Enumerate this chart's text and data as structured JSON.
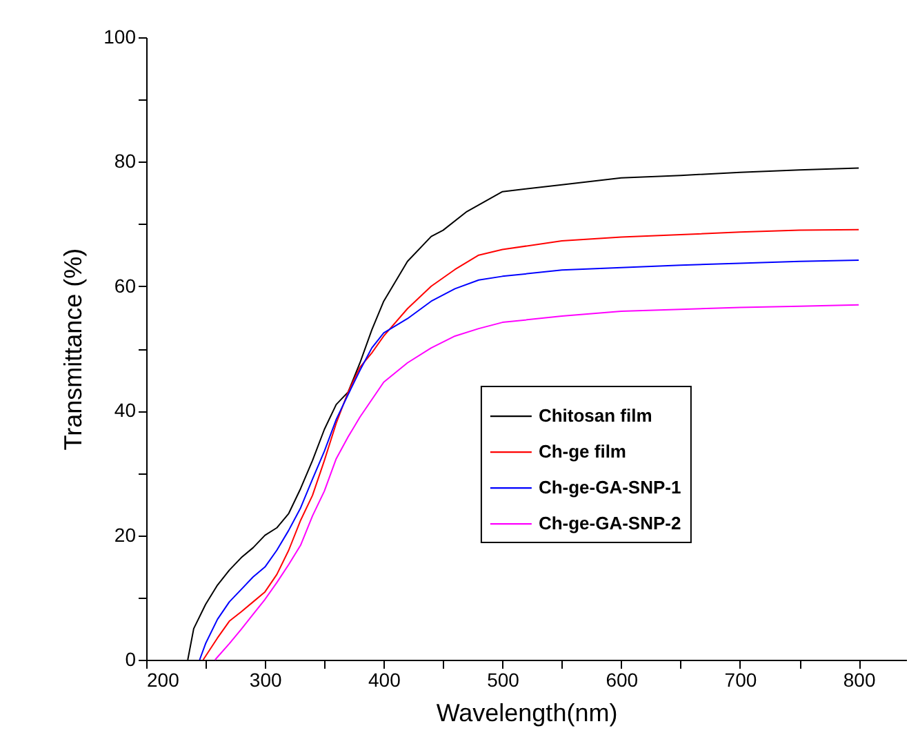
{
  "chart_data": {
    "type": "line",
    "xlabel": "Wavelength(nm)",
    "ylabel": "Transmittance (%)",
    "xlim": [
      200,
      840
    ],
    "ylim": [
      0,
      100
    ],
    "xticks": [
      200,
      {
        "value": 250,
        "label": null
      },
      300,
      {
        "value": 350,
        "label": null
      },
      400,
      {
        "value": 450,
        "label": null
      },
      500,
      {
        "value": 550,
        "label": null
      },
      600,
      {
        "value": 650,
        "label": null
      },
      700,
      {
        "value": 750,
        "label": null
      },
      800
    ],
    "yticks": [
      0,
      {
        "value": 10,
        "label": null
      },
      20,
      {
        "value": 30,
        "label": null
      },
      40,
      {
        "value": 50,
        "label": null
      },
      60,
      {
        "value": 70,
        "label": null
      },
      80,
      {
        "value": 90,
        "label": null
      },
      100
    ],
    "legend": "right",
    "grid": false,
    "marker": "none",
    "line_style": "solid",
    "series": [
      {
        "name": "Chitosan film",
        "color": "#000000",
        "x": [
          235,
          240,
          250,
          260,
          270,
          280,
          290,
          300,
          310,
          320,
          330,
          340,
          350,
          360,
          370,
          380,
          390,
          400,
          420,
          440,
          450,
          470,
          500,
          550,
          600,
          650,
          700,
          750,
          800
        ],
        "values": [
          0,
          5,
          8.9,
          12,
          14.4,
          16.4,
          18,
          20,
          21.2,
          23.5,
          27.5,
          32,
          37,
          41,
          43,
          47.7,
          53,
          57.6,
          64,
          68,
          69,
          72,
          75.2,
          76.3,
          77.4,
          77.8,
          78.3,
          78.7,
          79
        ]
      },
      {
        "name": "Ch-ge film",
        "color": "#ff0000",
        "x": [
          248,
          260,
          270,
          280,
          290,
          300,
          310,
          320,
          330,
          340,
          350,
          360,
          370,
          380,
          390,
          400,
          420,
          440,
          460,
          480,
          500,
          550,
          600,
          650,
          700,
          750,
          800
        ],
        "values": [
          0,
          3.5,
          6.2,
          7.7,
          9.3,
          10.9,
          13.7,
          17.6,
          22.4,
          26.4,
          32,
          38,
          43,
          47,
          49.3,
          52,
          56.4,
          60,
          62.7,
          65,
          65.9,
          67.3,
          67.9,
          68.3,
          68.7,
          69,
          69.1
        ]
      },
      {
        "name": "Ch-ge-GA-SNP-1",
        "color": "#0000ff",
        "x": [
          245,
          250,
          260,
          270,
          280,
          290,
          300,
          310,
          320,
          330,
          340,
          350,
          360,
          370,
          380,
          390,
          400,
          420,
          440,
          460,
          480,
          500,
          550,
          600,
          650,
          700,
          750,
          800
        ],
        "values": [
          0,
          2.6,
          6.5,
          9.3,
          11.3,
          13.3,
          14.9,
          17.6,
          20.8,
          24.4,
          29,
          33.5,
          38.6,
          42.6,
          46.5,
          50.1,
          52.5,
          54.8,
          57.6,
          59.6,
          61,
          61.6,
          62.6,
          63,
          63.4,
          63.7,
          64,
          64.2
        ]
      },
      {
        "name": "Ch-ge-GA-SNP-2",
        "color": "#ff00ff",
        "x": [
          258,
          270,
          280,
          290,
          300,
          310,
          320,
          330,
          340,
          350,
          360,
          370,
          380,
          390,
          400,
          420,
          440,
          460,
          480,
          500,
          550,
          600,
          650,
          700,
          750,
          800
        ],
        "values": [
          0,
          2.6,
          4.9,
          7.3,
          9.7,
          12.4,
          15.3,
          18.4,
          23.1,
          27.1,
          32.3,
          35.8,
          39,
          41.8,
          44.6,
          47.7,
          50.1,
          52,
          53.2,
          54.2,
          55.2,
          56,
          56.3,
          56.6,
          56.8,
          57
        ]
      }
    ]
  }
}
